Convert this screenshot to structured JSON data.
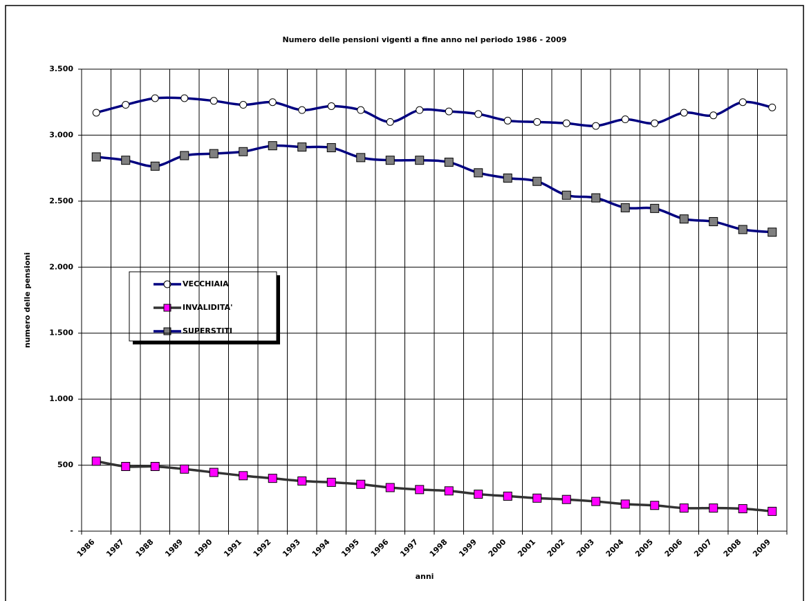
{
  "chart_data": {
    "type": "line",
    "title": "Numero delle pensioni vigenti a fine anno nel periodo 1986 - 2009",
    "x_label": "anni",
    "y_label": "numero delle pensioni",
    "categories": [
      "1986",
      "1987",
      "1988",
      "1989",
      "1990",
      "1991",
      "1992",
      "1993",
      "1994",
      "1995",
      "1996",
      "1997",
      "1998",
      "1999",
      "2000",
      "2001",
      "2002",
      "2003",
      "2004",
      "2005",
      "2006",
      "2007",
      "2008",
      "2009"
    ],
    "series": [
      {
        "name": "VECCHIAIA",
        "color": "#000080",
        "marker": "circle",
        "marker_color": "#ffffff",
        "values": [
          3170,
          3230,
          3280,
          3280,
          3260,
          3230,
          3250,
          3190,
          3220,
          3190,
          3100,
          3190,
          3180,
          3160,
          3110,
          3100,
          3090,
          3070,
          3120,
          3090,
          3170,
          3150,
          3250,
          3210
        ]
      },
      {
        "name": "INVALIDITA'",
        "color": "#333333",
        "marker": "square",
        "marker_color": "#ff00ff",
        "values": [
          530,
          490,
          490,
          470,
          445,
          420,
          400,
          380,
          370,
          355,
          330,
          315,
          305,
          280,
          265,
          250,
          240,
          225,
          205,
          195,
          175,
          175,
          170,
          150
        ]
      },
      {
        "name": "SUPERSTITI",
        "color": "#000080",
        "marker": "square",
        "marker_color": "#808080",
        "values": [
          2835,
          2810,
          2765,
          2845,
          2860,
          2875,
          2920,
          2910,
          2905,
          2830,
          2810,
          2810,
          2795,
          2715,
          2675,
          2650,
          2545,
          2525,
          2450,
          2445,
          2365,
          2345,
          2285,
          2265
        ]
      }
    ],
    "ylim": [
      0,
      3500
    ],
    "yticks": [
      {
        "value": 0,
        "label": "-"
      },
      500,
      {
        "value": 1000,
        "label": "1.000"
      },
      {
        "value": 1500,
        "label": "1.500"
      },
      {
        "value": 2000,
        "label": "2.000"
      },
      {
        "value": 2500,
        "label": "2.500"
      },
      {
        "value": 3000,
        "label": "3.000"
      },
      {
        "value": 3500,
        "label": "3.500"
      }
    ],
    "grid": true
  }
}
